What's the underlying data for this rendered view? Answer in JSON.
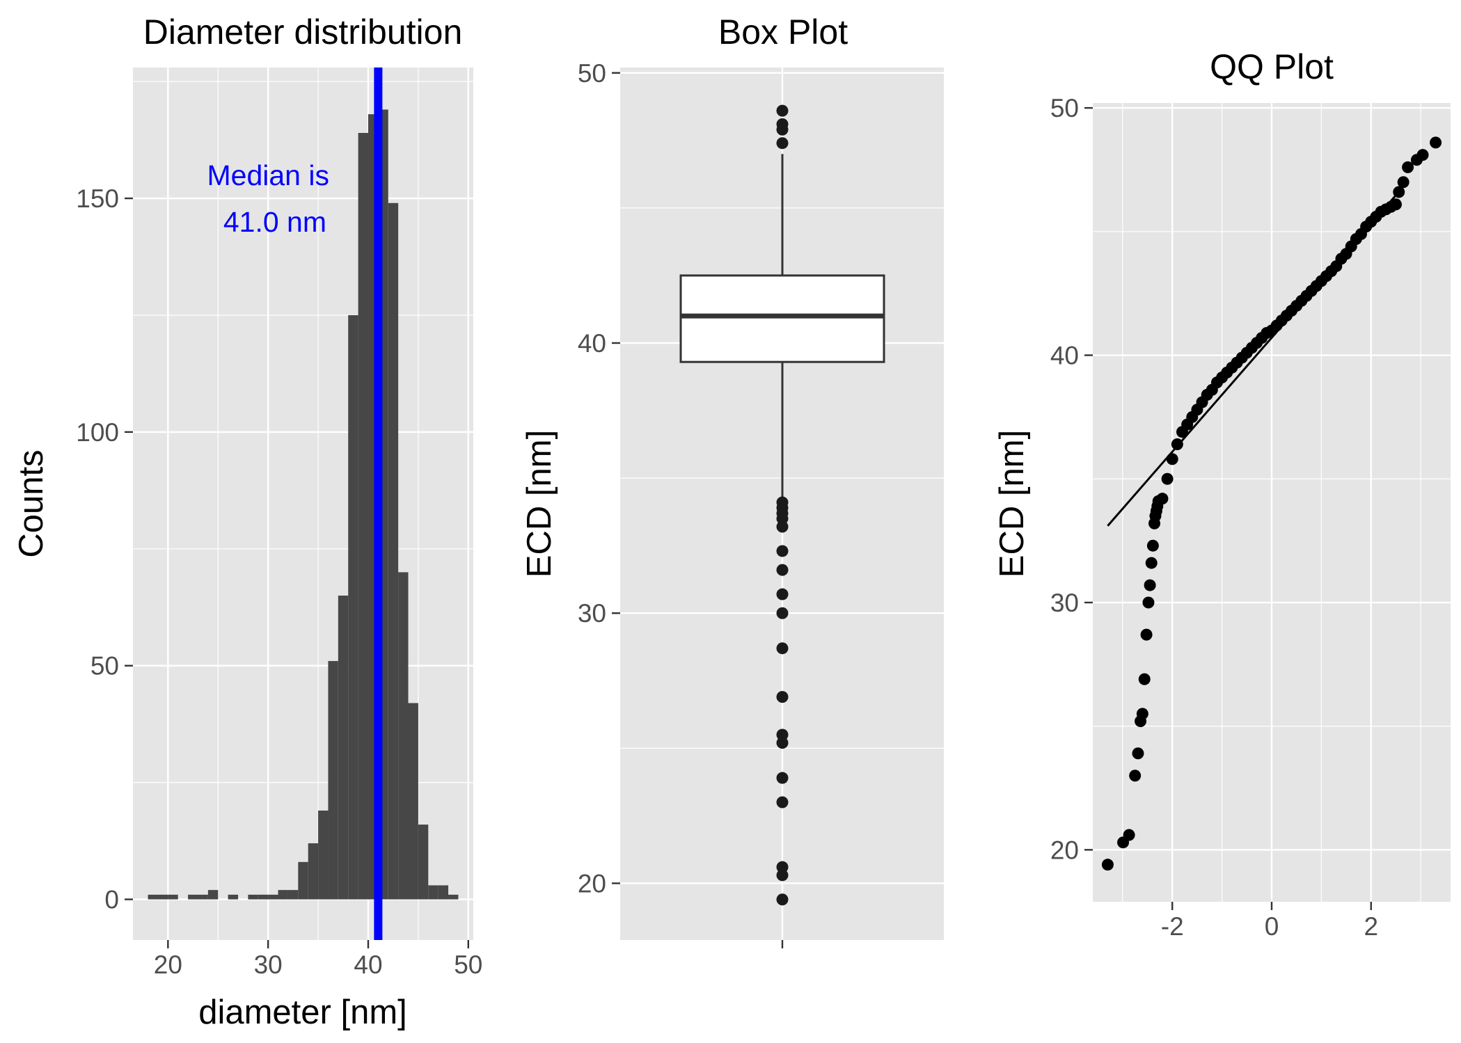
{
  "chart_data": [
    {
      "type": "bar",
      "subtype": "histogram",
      "title": "Diameter distribution",
      "xlabel": "diameter [nm]",
      "ylabel": "Counts",
      "xlim": [
        16.5,
        50.5
      ],
      "ylim": [
        -8.7,
        178
      ],
      "x_ticks": [
        "20",
        "30",
        "40",
        "50"
      ],
      "y_ticks": [
        "0",
        "50",
        "100",
        "150"
      ],
      "bin_width": 1,
      "bins": [
        {
          "x": 18.5,
          "count": 1
        },
        {
          "x": 19.5,
          "count": 1
        },
        {
          "x": 20.5,
          "count": 1
        },
        {
          "x": 22.5,
          "count": 1
        },
        {
          "x": 23.5,
          "count": 1
        },
        {
          "x": 24.5,
          "count": 2
        },
        {
          "x": 26.5,
          "count": 1
        },
        {
          "x": 28.5,
          "count": 1
        },
        {
          "x": 29.5,
          "count": 1
        },
        {
          "x": 30.5,
          "count": 1
        },
        {
          "x": 31.5,
          "count": 2
        },
        {
          "x": 32.5,
          "count": 2
        },
        {
          "x": 33.5,
          "count": 8
        },
        {
          "x": 34.5,
          "count": 12
        },
        {
          "x": 35.5,
          "count": 19
        },
        {
          "x": 36.5,
          "count": 51
        },
        {
          "x": 37.5,
          "count": 65
        },
        {
          "x": 38.5,
          "count": 125
        },
        {
          "x": 39.5,
          "count": 164
        },
        {
          "x": 40.5,
          "count": 168
        },
        {
          "x": 41.5,
          "count": 169
        },
        {
          "x": 42.5,
          "count": 149
        },
        {
          "x": 43.5,
          "count": 70
        },
        {
          "x": 44.5,
          "count": 42
        },
        {
          "x": 45.5,
          "count": 16
        },
        {
          "x": 46.5,
          "count": 3
        },
        {
          "x": 47.5,
          "count": 3
        },
        {
          "x": 48.5,
          "count": 1
        }
      ],
      "median_line": {
        "x": 41.0,
        "color": "#0000ff"
      },
      "annotation": [
        "Median is",
        "41.0 nm"
      ],
      "annotation_color": "#0000ff",
      "bar_color": "#474747",
      "grid": true,
      "panel_background": "#e5e5e5"
    },
    {
      "type": "box",
      "title": "Box Plot",
      "xlabel": "",
      "ylabel": "ECD [nm]",
      "ylim": [
        17.9,
        50.2
      ],
      "y_ticks": [
        "20",
        "30",
        "40",
        "50"
      ],
      "box": {
        "lower_whisker": 34.2,
        "q1": 39.3,
        "median": 41.0,
        "q3": 42.5,
        "upper_whisker": 47.0
      },
      "outliers": [
        48.6,
        48.1,
        47.9,
        47.4,
        34.1,
        33.9,
        33.7,
        33.5,
        33.2,
        32.3,
        31.6,
        30.7,
        30.0,
        28.7,
        26.9,
        25.5,
        25.2,
        23.9,
        23.0,
        20.6,
        20.3,
        19.4
      ],
      "grid": true,
      "panel_background": "#e5e5e5"
    },
    {
      "type": "scatter",
      "subtype": "qq",
      "title": "QQ Plot",
      "xlabel": "",
      "ylabel": "ECD [nm]",
      "xlim": [
        -3.6,
        3.6
      ],
      "ylim": [
        17.9,
        50.2
      ],
      "x_ticks": [
        "-2",
        "0",
        "2"
      ],
      "y_ticks": [
        "20",
        "30",
        "40",
        "50"
      ],
      "reference_line": {
        "x": [
          -3.3,
          2.6
        ],
        "y": [
          33.1,
          46.7
        ]
      },
      "points": [
        [
          -3.3,
          19.4
        ],
        [
          -2.99,
          20.3
        ],
        [
          -2.87,
          20.6
        ],
        [
          -2.75,
          23.0
        ],
        [
          -2.69,
          23.9
        ],
        [
          -2.64,
          25.2
        ],
        [
          -2.6,
          25.5
        ],
        [
          -2.56,
          26.9
        ],
        [
          -2.52,
          28.7
        ],
        [
          -2.48,
          30.0
        ],
        [
          -2.45,
          30.7
        ],
        [
          -2.42,
          31.6
        ],
        [
          -2.39,
          32.3
        ],
        [
          -2.36,
          33.2
        ],
        [
          -2.34,
          33.5
        ],
        [
          -2.32,
          33.7
        ],
        [
          -2.3,
          33.9
        ],
        [
          -2.28,
          34.1
        ],
        [
          -2.2,
          34.2
        ],
        [
          -2.1,
          35.0
        ],
        [
          -2.0,
          35.8
        ],
        [
          -1.9,
          36.4
        ],
        [
          -1.8,
          36.9
        ],
        [
          -1.7,
          37.2
        ],
        [
          -1.6,
          37.5
        ],
        [
          -1.5,
          37.8
        ],
        [
          -1.4,
          38.1
        ],
        [
          -1.3,
          38.4
        ],
        [
          -1.2,
          38.6
        ],
        [
          -1.1,
          38.9
        ],
        [
          -1.0,
          39.1
        ],
        [
          -0.9,
          39.3
        ],
        [
          -0.8,
          39.5
        ],
        [
          -0.7,
          39.7
        ],
        [
          -0.6,
          39.9
        ],
        [
          -0.5,
          40.1
        ],
        [
          -0.4,
          40.3
        ],
        [
          -0.3,
          40.5
        ],
        [
          -0.2,
          40.7
        ],
        [
          -0.1,
          40.9
        ],
        [
          0.0,
          41.0
        ],
        [
          0.1,
          41.2
        ],
        [
          0.2,
          41.4
        ],
        [
          0.3,
          41.6
        ],
        [
          0.4,
          41.8
        ],
        [
          0.5,
          42.0
        ],
        [
          0.6,
          42.2
        ],
        [
          0.7,
          42.4
        ],
        [
          0.8,
          42.6
        ],
        [
          0.9,
          42.8
        ],
        [
          1.0,
          43.0
        ],
        [
          1.1,
          43.2
        ],
        [
          1.2,
          43.4
        ],
        [
          1.3,
          43.6
        ],
        [
          1.4,
          43.9
        ],
        [
          1.5,
          44.1
        ],
        [
          1.6,
          44.4
        ],
        [
          1.7,
          44.7
        ],
        [
          1.8,
          44.9
        ],
        [
          1.9,
          45.2
        ],
        [
          2.0,
          45.4
        ],
        [
          2.1,
          45.6
        ],
        [
          2.2,
          45.8
        ],
        [
          2.3,
          45.9
        ],
        [
          2.4,
          46.0
        ],
        [
          2.5,
          46.1
        ],
        [
          2.56,
          46.6
        ],
        [
          2.65,
          47.0
        ],
        [
          2.74,
          47.6
        ],
        [
          2.92,
          47.9
        ],
        [
          3.04,
          48.1
        ],
        [
          3.3,
          48.6
        ]
      ],
      "grid": true,
      "panel_background": "#e5e5e5"
    }
  ]
}
